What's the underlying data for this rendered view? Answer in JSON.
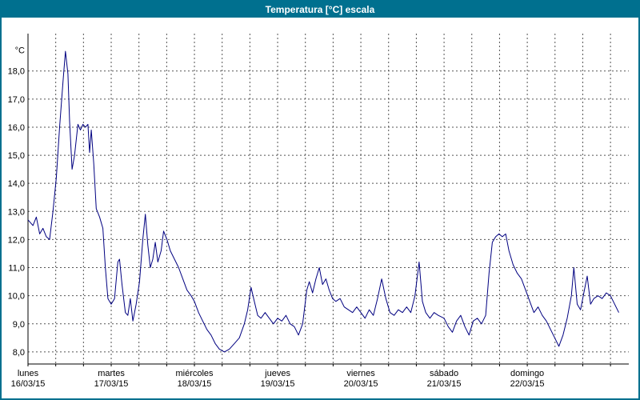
{
  "window": {
    "title": "Temperatura [°C] escala"
  },
  "colors": {
    "titlebar_bg": "#00708F",
    "titlebar_text": "#FFFFFF",
    "border": "#00708F",
    "line": "#000080",
    "grid": "#555555",
    "axis": "#000000",
    "text": "#000000"
  },
  "chart_data": {
    "type": "line",
    "title": "Temperatura [°C] escala",
    "y_unit_label": "°C",
    "ylim": [
      7.57,
      19.33
    ],
    "xlim_days": [
      0,
      7.22
    ],
    "grid": "dashed",
    "legend": "none",
    "minor_per_day": 3,
    "yticks": [
      8,
      9,
      10,
      11,
      12,
      13,
      14,
      15,
      16,
      17,
      18
    ],
    "ytick_labels": [
      "8,0",
      "9,0",
      "10,0",
      "11,0",
      "12,0",
      "13,0",
      "14,0",
      "15,0",
      "16,0",
      "17,0",
      "18,0"
    ],
    "x_days": [
      {
        "name": "lunes",
        "date": "16/03/15"
      },
      {
        "name": "martes",
        "date": "17/03/15"
      },
      {
        "name": "miércoles",
        "date": "18/03/15"
      },
      {
        "name": "jueves",
        "date": "19/03/15"
      },
      {
        "name": "viernes",
        "date": "20/03/15"
      },
      {
        "name": "sábado",
        "date": "21/03/15"
      },
      {
        "name": "domingo",
        "date": "22/03/15"
      }
    ],
    "series": [
      {
        "name": "Temperatura",
        "points": [
          [
            0.0,
            12.7
          ],
          [
            0.06,
            12.5
          ],
          [
            0.1,
            12.8
          ],
          [
            0.14,
            12.2
          ],
          [
            0.18,
            12.4
          ],
          [
            0.22,
            12.1
          ],
          [
            0.26,
            12.0
          ],
          [
            0.3,
            13.0
          ],
          [
            0.34,
            14.2
          ],
          [
            0.38,
            16.0
          ],
          [
            0.42,
            17.6
          ],
          [
            0.45,
            18.7
          ],
          [
            0.48,
            17.9
          ],
          [
            0.5,
            16.2
          ],
          [
            0.53,
            14.5
          ],
          [
            0.56,
            15.0
          ],
          [
            0.6,
            16.1
          ],
          [
            0.63,
            15.9
          ],
          [
            0.66,
            16.1
          ],
          [
            0.69,
            16.0
          ],
          [
            0.72,
            16.1
          ],
          [
            0.74,
            15.1
          ],
          [
            0.76,
            15.9
          ],
          [
            0.79,
            14.7
          ],
          [
            0.82,
            13.1
          ],
          [
            0.86,
            12.8
          ],
          [
            0.9,
            12.4
          ],
          [
            0.93,
            11.0
          ],
          [
            0.96,
            9.9
          ],
          [
            1.0,
            9.7
          ],
          [
            1.04,
            9.9
          ],
          [
            1.08,
            11.2
          ],
          [
            1.1,
            11.3
          ],
          [
            1.13,
            10.4
          ],
          [
            1.17,
            9.4
          ],
          [
            1.2,
            9.3
          ],
          [
            1.23,
            9.9
          ],
          [
            1.26,
            9.1
          ],
          [
            1.3,
            9.7
          ],
          [
            1.34,
            10.5
          ],
          [
            1.38,
            12.0
          ],
          [
            1.41,
            12.9
          ],
          [
            1.44,
            11.8
          ],
          [
            1.47,
            11.0
          ],
          [
            1.5,
            11.3
          ],
          [
            1.53,
            11.9
          ],
          [
            1.56,
            11.2
          ],
          [
            1.6,
            11.6
          ],
          [
            1.63,
            12.3
          ],
          [
            1.67,
            12.0
          ],
          [
            1.71,
            11.6
          ],
          [
            1.76,
            11.3
          ],
          [
            1.81,
            11.0
          ],
          [
            1.86,
            10.6
          ],
          [
            1.91,
            10.2
          ],
          [
            1.96,
            10.0
          ],
          [
            2.0,
            9.8
          ],
          [
            2.05,
            9.4
          ],
          [
            2.1,
            9.1
          ],
          [
            2.15,
            8.8
          ],
          [
            2.2,
            8.6
          ],
          [
            2.25,
            8.3
          ],
          [
            2.3,
            8.1
          ],
          [
            2.36,
            8.0
          ],
          [
            2.42,
            8.1
          ],
          [
            2.48,
            8.3
          ],
          [
            2.54,
            8.5
          ],
          [
            2.6,
            9.0
          ],
          [
            2.64,
            9.5
          ],
          [
            2.68,
            10.3
          ],
          [
            2.72,
            9.8
          ],
          [
            2.76,
            9.3
          ],
          [
            2.8,
            9.2
          ],
          [
            2.85,
            9.4
          ],
          [
            2.9,
            9.2
          ],
          [
            2.95,
            9.0
          ],
          [
            3.0,
            9.2
          ],
          [
            3.05,
            9.1
          ],
          [
            3.1,
            9.3
          ],
          [
            3.15,
            9.0
          ],
          [
            3.2,
            8.9
          ],
          [
            3.25,
            8.6
          ],
          [
            3.3,
            9.0
          ],
          [
            3.35,
            10.2
          ],
          [
            3.38,
            10.5
          ],
          [
            3.42,
            10.1
          ],
          [
            3.46,
            10.6
          ],
          [
            3.5,
            11.0
          ],
          [
            3.54,
            10.4
          ],
          [
            3.58,
            10.6
          ],
          [
            3.62,
            10.2
          ],
          [
            3.66,
            9.9
          ],
          [
            3.7,
            9.8
          ],
          [
            3.75,
            9.9
          ],
          [
            3.8,
            9.6
          ],
          [
            3.85,
            9.5
          ],
          [
            3.9,
            9.4
          ],
          [
            3.95,
            9.6
          ],
          [
            4.0,
            9.4
          ],
          [
            4.05,
            9.2
          ],
          [
            4.1,
            9.5
          ],
          [
            4.15,
            9.3
          ],
          [
            4.2,
            9.9
          ],
          [
            4.25,
            10.6
          ],
          [
            4.3,
            9.9
          ],
          [
            4.35,
            9.4
          ],
          [
            4.4,
            9.3
          ],
          [
            4.45,
            9.5
          ],
          [
            4.5,
            9.4
          ],
          [
            4.55,
            9.6
          ],
          [
            4.6,
            9.4
          ],
          [
            4.65,
            10.0
          ],
          [
            4.7,
            11.2
          ],
          [
            4.74,
            9.8
          ],
          [
            4.78,
            9.4
          ],
          [
            4.83,
            9.2
          ],
          [
            4.88,
            9.4
          ],
          [
            4.93,
            9.3
          ],
          [
            5.0,
            9.2
          ],
          [
            5.05,
            8.9
          ],
          [
            5.1,
            8.7
          ],
          [
            5.15,
            9.1
          ],
          [
            5.2,
            9.3
          ],
          [
            5.25,
            8.9
          ],
          [
            5.3,
            8.6
          ],
          [
            5.35,
            9.1
          ],
          [
            5.4,
            9.2
          ],
          [
            5.45,
            9.0
          ],
          [
            5.5,
            9.3
          ],
          [
            5.54,
            10.8
          ],
          [
            5.58,
            11.9
          ],
          [
            5.62,
            12.1
          ],
          [
            5.66,
            12.2
          ],
          [
            5.7,
            12.1
          ],
          [
            5.74,
            12.2
          ],
          [
            5.78,
            11.6
          ],
          [
            5.83,
            11.1
          ],
          [
            5.88,
            10.8
          ],
          [
            5.93,
            10.6
          ],
          [
            5.98,
            10.2
          ],
          [
            6.03,
            9.8
          ],
          [
            6.08,
            9.4
          ],
          [
            6.13,
            9.6
          ],
          [
            6.18,
            9.3
          ],
          [
            6.23,
            9.1
          ],
          [
            6.28,
            8.8
          ],
          [
            6.33,
            8.5
          ],
          [
            6.38,
            8.2
          ],
          [
            6.43,
            8.6
          ],
          [
            6.48,
            9.2
          ],
          [
            6.53,
            10.0
          ],
          [
            6.56,
            11.0
          ],
          [
            6.6,
            9.7
          ],
          [
            6.64,
            9.5
          ],
          [
            6.68,
            10.1
          ],
          [
            6.72,
            10.7
          ],
          [
            6.76,
            9.7
          ],
          [
            6.8,
            9.9
          ],
          [
            6.85,
            10.0
          ],
          [
            6.9,
            9.9
          ],
          [
            6.95,
            10.1
          ],
          [
            7.0,
            10.0
          ],
          [
            7.05,
            9.7
          ],
          [
            7.1,
            9.4
          ]
        ]
      }
    ]
  }
}
